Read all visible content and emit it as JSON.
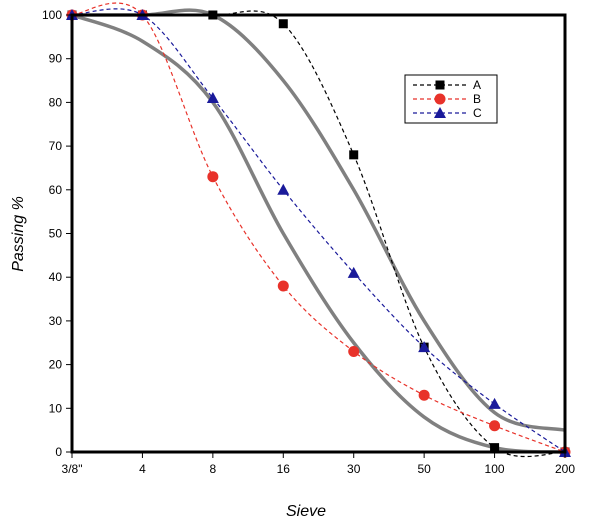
{
  "chart_data": {
    "type": "line",
    "xlabel": "Sieve",
    "ylabel": "Passing  %",
    "categories": [
      "3/8\"",
      "4",
      "8",
      "16",
      "30",
      "50",
      "100",
      "200"
    ],
    "ylim": [
      0,
      100
    ],
    "yticks": [
      0,
      10,
      20,
      30,
      40,
      50,
      60,
      70,
      80,
      90,
      100
    ],
    "grid": false,
    "legend_position": "top-right",
    "series": [
      {
        "name": "A",
        "values": [
          100,
          100,
          100,
          98,
          68,
          24,
          1,
          0
        ],
        "color": "#000000",
        "marker": "square"
      },
      {
        "name": "B",
        "values": [
          100,
          100,
          63,
          38,
          23,
          13,
          6,
          0
        ],
        "color": "#e8322a",
        "marker": "circle"
      },
      {
        "name": "C",
        "values": [
          100,
          100,
          81,
          60,
          41,
          24,
          11,
          0
        ],
        "color": "#1a1a9a",
        "marker": "triangle"
      }
    ],
    "envelope": {
      "color": "#808080",
      "upper": [
        100,
        100,
        100,
        85,
        60,
        30,
        9,
        5
      ],
      "lower": [
        100,
        94,
        80,
        50,
        25,
        8,
        1,
        0
      ]
    }
  }
}
